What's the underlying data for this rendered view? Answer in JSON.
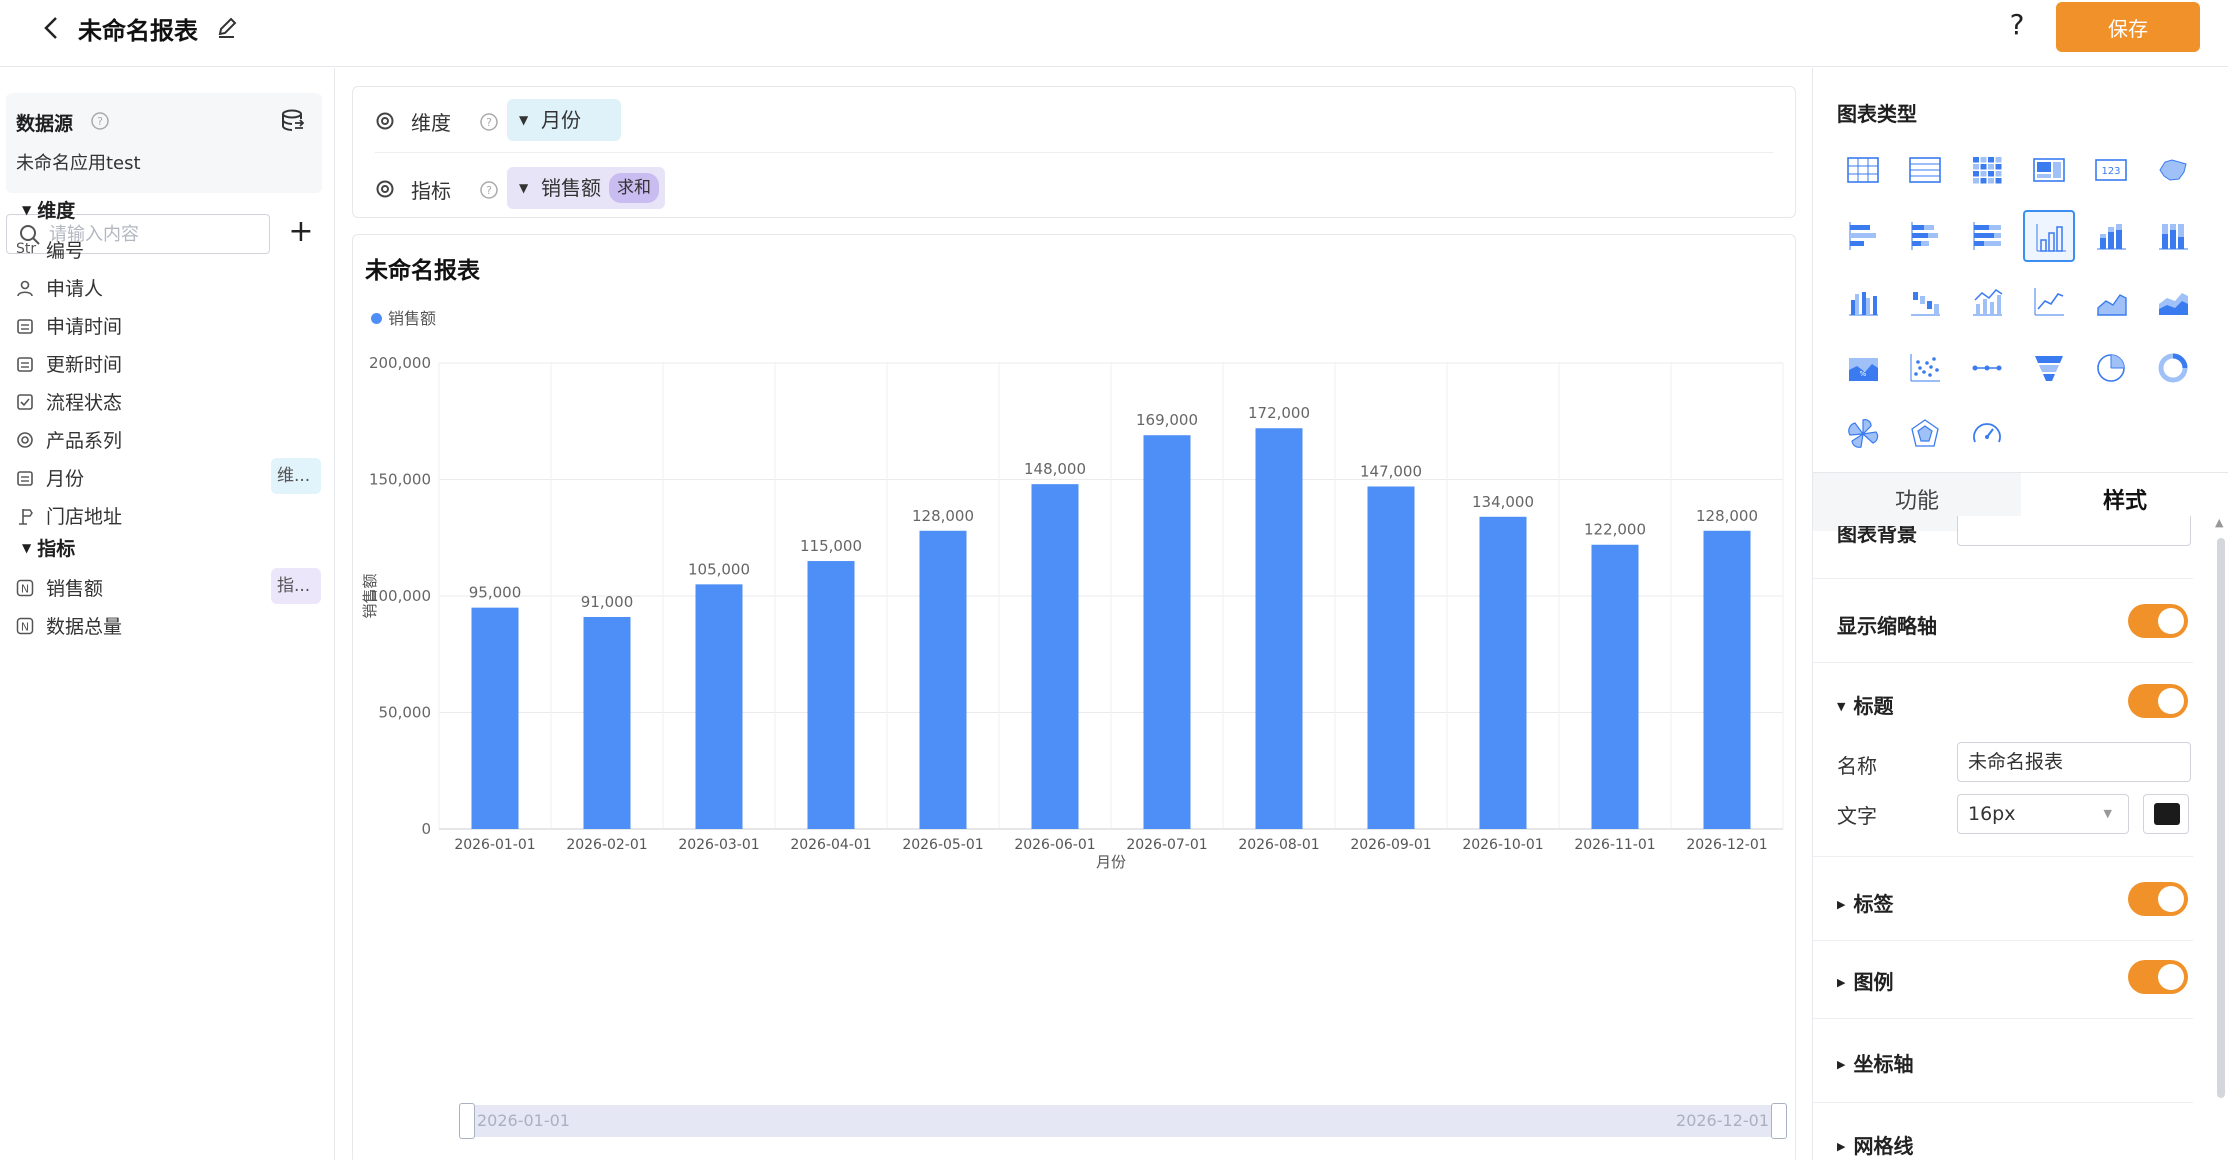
{
  "header": {
    "title": "未命名报表",
    "help": "?",
    "save_label": "保存"
  },
  "left": {
    "datasource_title": "数据源",
    "datasource_app": "未命名应用test",
    "search_placeholder": "请输入内容",
    "add": "+",
    "dim_section": "维度",
    "dimensions": [
      {
        "icon": "Str",
        "label": "编号"
      },
      {
        "icon": "user",
        "label": "申请人"
      },
      {
        "icon": "calendar",
        "label": "申请时间"
      },
      {
        "icon": "calendar",
        "label": "更新时间"
      },
      {
        "icon": "checkbox",
        "label": "流程状态"
      },
      {
        "icon": "radio",
        "label": "产品系列"
      },
      {
        "icon": "calendar",
        "label": "月份",
        "tag": "维..."
      },
      {
        "icon": "location",
        "label": "门店地址"
      }
    ],
    "metric_section": "指标",
    "metrics": [
      {
        "icon": "N",
        "label": "销售额",
        "tag": "指..."
      },
      {
        "icon": "N",
        "label": "数据总量"
      }
    ]
  },
  "config": {
    "dimension_label": "维度",
    "dimension_value": "月份",
    "metric_label": "指标",
    "metric_value": "销售额",
    "metric_agg": "求和"
  },
  "chart_data": {
    "type": "bar",
    "title": "未命名报表",
    "xlabel": "月份",
    "ylabel": "销售额",
    "legend": "top-left",
    "grid": true,
    "ylim": [
      0,
      200000
    ],
    "yticks": [
      "200,000",
      "150,000",
      "100,000",
      "50,000",
      "0"
    ],
    "categories": [
      "2026-01-01",
      "2026-02-01",
      "2026-03-01",
      "2026-04-01",
      "2026-05-01",
      "2026-06-01",
      "2026-07-01",
      "2026-08-01",
      "2026-09-01",
      "2026-10-01",
      "2026-11-01",
      "2026-12-01"
    ],
    "series": [
      {
        "name": "销售额",
        "color": "#4e8ff7",
        "values": [
          95000,
          91000,
          105000,
          115000,
          128000,
          148000,
          169000,
          172000,
          147000,
          134000,
          122000,
          128000
        ],
        "labels": [
          "95,000",
          "91,000",
          "105,000",
          "115,000",
          "128,000",
          "148,000",
          "169,000",
          "172,000",
          "147,000",
          "134,000",
          "122,000",
          "128,000"
        ]
      }
    ],
    "zoom_start": "2026-01-01",
    "zoom_end": "2026-12-01"
  },
  "right": {
    "chart_type_title": "图表类型",
    "chart_types": [
      "table",
      "detail-table",
      "pivot-table",
      "kpi-card",
      "number-card",
      "map",
      "bar-h",
      "stacked-bar-h",
      "percent-bar-h",
      "bar",
      "stacked-bar",
      "percent-bar",
      "multi-bar",
      "step-bar",
      "bar-line",
      "line",
      "area",
      "stacked-area",
      "percent-area",
      "scatter",
      "dot-line",
      "funnel",
      "pie",
      "ring",
      "rose",
      "radar",
      "gauge"
    ],
    "selected_chart_type": "bar",
    "tab_function": "功能",
    "tab_style": "样式",
    "cut_label": "图表背景",
    "show_thumbnail_axis": "显示缩略轴",
    "title_section": "标题",
    "name_label": "名称",
    "name_value": "未命名报表",
    "font_label": "文字",
    "font_size": "16px",
    "font_color": "#1b1b1b",
    "label_section": "标签",
    "legend_section": "图例",
    "axis_section": "坐标轴",
    "grid_section": "网格线",
    "accent": "#f0912a"
  }
}
